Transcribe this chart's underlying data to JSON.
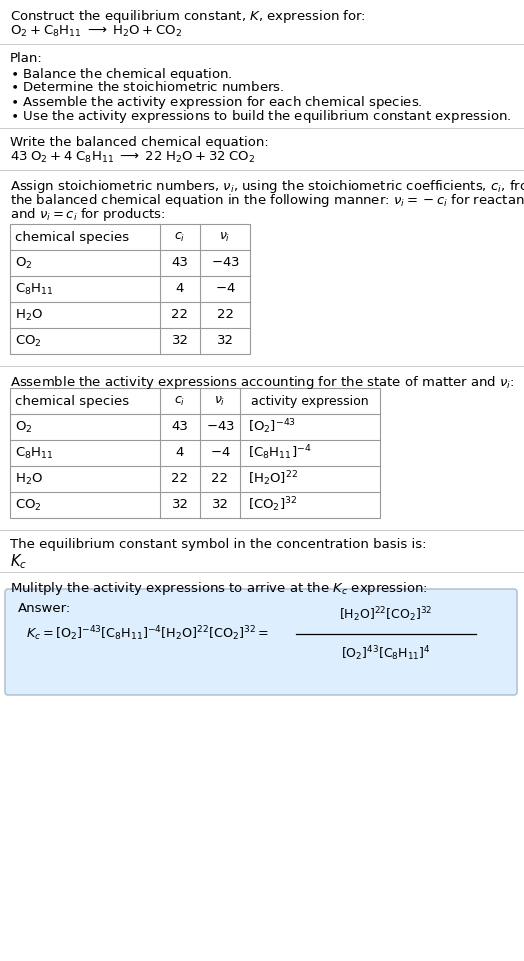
{
  "bg_color": "#ffffff",
  "text_color": "#000000",
  "border_color": "#999999",
  "sep_color": "#cccccc",
  "answer_bg": "#ddeeff",
  "answer_border": "#aabbcc",
  "font_size": 9.5,
  "title_line1": "Construct the equilibrium constant, $K$, expression for:",
  "title_line2": "$\\mathrm{O_2 + C_8H_{11} \\;\\longrightarrow\\; H_2O + CO_2}$",
  "plan_header": "Plan:",
  "plan_items": [
    "Balance the chemical equation.",
    "Determine the stoichiometric numbers.",
    "Assemble the activity expression for each chemical species.",
    "Use the activity expressions to build the equilibrium constant expression."
  ],
  "balanced_header": "Write the balanced chemical equation:",
  "balanced_eq": "$\\mathrm{43\\;O_2 + 4\\;C_8H_{11} \\;\\longrightarrow\\; 22\\;H_2O + 32\\;CO_2}$",
  "stoich_text_lines": [
    "Assign stoichiometric numbers, $\\nu_i$, using the stoichiometric coefficients, $c_i$, from",
    "the balanced chemical equation in the following manner: $\\nu_i = -c_i$ for reactants",
    "and $\\nu_i = c_i$ for products:"
  ],
  "table1_species": [
    "$\\mathrm{O_2}$",
    "$\\mathrm{C_8H_{11}}$",
    "$\\mathrm{H_2O}$",
    "$\\mathrm{CO_2}$"
  ],
  "table1_ci": [
    "43",
    "4",
    "22",
    "32"
  ],
  "table1_nu": [
    "$-43$",
    "$-4$",
    "22",
    "32"
  ],
  "activity_header": "Assemble the activity expressions accounting for the state of matter and $\\nu_i$:",
  "table2_species": [
    "$\\mathrm{O_2}$",
    "$\\mathrm{C_8H_{11}}$",
    "$\\mathrm{H_2O}$",
    "$\\mathrm{CO_2}$"
  ],
  "table2_ci": [
    "43",
    "4",
    "22",
    "32"
  ],
  "table2_nu": [
    "$-43$",
    "$-4$",
    "22",
    "32"
  ],
  "table2_act": [
    "$[\\mathrm{O_2}]^{-43}$",
    "$[\\mathrm{C_8H_{11}}]^{-4}$",
    "$[\\mathrm{H_2O}]^{22}$",
    "$[\\mathrm{CO_2}]^{32}$"
  ],
  "kc_header": "The equilibrium constant symbol in the concentration basis is:",
  "kc_symbol": "$K_c$",
  "multiply_header": "Mulitply the activity expressions to arrive at the $K_c$ expression:",
  "answer_label": "Answer:",
  "kc_lhs": "$K_c = [\\mathrm{O_2}]^{-43} [\\mathrm{C_8H_{11}}]^{-4} [\\mathrm{H_2O}]^{22} [\\mathrm{CO_2}]^{32} = $",
  "frac_num": "$[\\mathrm{H_2O}]^{22} [\\mathrm{CO_2}]^{32}$",
  "frac_den": "$[\\mathrm{O_2}]^{43} [\\mathrm{C_8H_{11}}]^{4}$"
}
